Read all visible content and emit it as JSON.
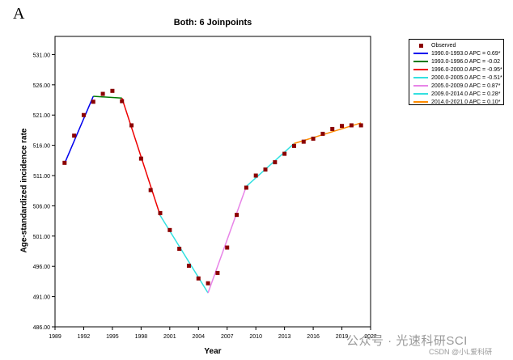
{
  "panel_label": "A",
  "watermark": "公众号 · 光速科研SCI",
  "credit": "CSDN @小L爱科研",
  "chart_data": {
    "type": "line",
    "title": "Both: 6 Joinpoints",
    "xlabel": "Year",
    "ylabel": "Age-standardized incidence rate",
    "xlim": [
      1989,
      2022
    ],
    "ylim": [
      486,
      534
    ],
    "x_ticks": [
      1989,
      1992,
      1995,
      1998,
      2001,
      2004,
      2007,
      2010,
      2013,
      2016,
      2019,
      2022
    ],
    "y_ticks": [
      486,
      491,
      496,
      501,
      506,
      511,
      516,
      521,
      526,
      531
    ],
    "y_tick_labels": [
      "486.00",
      "491.00",
      "496.00",
      "501.00",
      "506.00",
      "511.00",
      "516.00",
      "521.00",
      "526.00",
      "531.00"
    ],
    "grid": false,
    "legend_position": "outside-right",
    "observed": {
      "name": "Observed",
      "color": "#8b0000",
      "x": [
        1990,
        1991,
        1992,
        1993,
        1994,
        1995,
        1996,
        1997,
        1998,
        1999,
        2000,
        2001,
        2002,
        2003,
        2004,
        2005,
        2006,
        2007,
        2008,
        2009,
        2010,
        2011,
        2012,
        2013,
        2014,
        2015,
        2016,
        2017,
        2018,
        2019,
        2020,
        2021
      ],
      "y": [
        513.1,
        517.6,
        521.0,
        523.2,
        524.5,
        525.0,
        523.3,
        519.3,
        513.8,
        508.6,
        504.8,
        502.0,
        498.9,
        496.1,
        494.0,
        493.2,
        494.9,
        499.1,
        504.5,
        509.0,
        511.0,
        512.0,
        513.2,
        514.6,
        515.9,
        516.6,
        517.1,
        517.9,
        518.7,
        519.2,
        519.3,
        519.3
      ]
    },
    "segments": [
      {
        "name": "1990.0-1993.0 APC =  0.69*",
        "color": "#0000ee",
        "x": [
          1990,
          1993
        ],
        "y": [
          513.0,
          524.1
        ]
      },
      {
        "name": "1993.0-1996.0 APC =  -0.02",
        "color": "#007a00",
        "x": [
          1993,
          1996
        ],
        "y": [
          524.1,
          523.8
        ]
      },
      {
        "name": "1996.0-2000.0 APC = -0.95*",
        "color": "#ee0000",
        "x": [
          1996,
          2000
        ],
        "y": [
          523.8,
          504.4
        ]
      },
      {
        "name": "2000.0-2005.0 APC = -0.51*",
        "color": "#33e0e0",
        "x": [
          2000,
          2005
        ],
        "y": [
          504.4,
          491.6
        ]
      },
      {
        "name": "2005.0-2009.0 APC =  0.87*",
        "color": "#e884e8",
        "x": [
          2005,
          2009
        ],
        "y": [
          491.6,
          509.2
        ]
      },
      {
        "name": "2009.0-2014.0 APC =  0.28*",
        "color": "#33e0e0",
        "x": [
          2009,
          2014
        ],
        "y": [
          509.2,
          516.3
        ]
      },
      {
        "name": "2014.0-2021.0 APC =  0.10*",
        "color": "#ff8c00",
        "x": [
          2014,
          2021
        ],
        "y": [
          516.3,
          519.7
        ]
      }
    ]
  }
}
